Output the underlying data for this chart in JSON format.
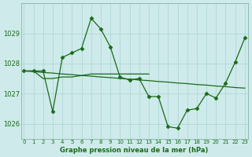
{
  "line1_x": [
    0,
    1,
    2,
    3,
    4,
    5,
    6,
    7,
    8,
    9,
    10,
    11,
    12,
    13,
    14,
    15,
    16,
    17,
    18,
    19,
    20,
    21,
    22,
    23
  ],
  "line1_y": [
    1027.75,
    1027.75,
    1027.75,
    1026.4,
    1028.2,
    1028.35,
    1028.5,
    1029.5,
    1029.15,
    1028.55,
    1027.55,
    1027.45,
    1027.5,
    1026.9,
    1026.9,
    1025.9,
    1025.85,
    1026.45,
    1026.5,
    1027.0,
    1026.85,
    1027.35,
    1028.05,
    1028.85
  ],
  "line2_x": [
    0,
    1,
    2,
    3,
    4,
    5,
    6,
    7,
    8,
    9,
    10,
    11,
    12,
    13,
    14,
    15,
    16,
    17,
    18,
    19,
    20,
    21,
    22,
    23
  ],
  "line2_y": [
    1027.75,
    1027.73,
    1027.7,
    1027.68,
    1027.65,
    1027.63,
    1027.6,
    1027.58,
    1027.55,
    1027.53,
    1027.5,
    1027.48,
    1027.45,
    1027.43,
    1027.4,
    1027.38,
    1027.35,
    1027.33,
    1027.3,
    1027.28,
    1027.25,
    1027.23,
    1027.2,
    1027.18
  ],
  "line3_x": [
    0,
    1,
    2,
    3,
    4,
    5,
    6,
    7,
    8,
    9,
    10,
    11,
    12,
    13
  ],
  "line3_y": [
    1027.75,
    1027.75,
    1027.5,
    1027.5,
    1027.55,
    1027.55,
    1027.6,
    1027.65,
    1027.65,
    1027.65,
    1027.65,
    1027.65,
    1027.65,
    1027.65
  ],
  "bg_color": "#ceeaea",
  "line_color": "#1a6b1a",
  "grid_color": "#b0d8d8",
  "xlabel": "Graphe pression niveau de la mer (hPa)",
  "ylim": [
    1025.5,
    1030.0
  ],
  "xlim": [
    -0.3,
    23.3
  ],
  "yticks": [
    1026,
    1027,
    1028,
    1029
  ],
  "xticks": [
    0,
    1,
    2,
    3,
    4,
    5,
    6,
    7,
    8,
    9,
    10,
    11,
    12,
    13,
    14,
    15,
    16,
    17,
    18,
    19,
    20,
    21,
    22,
    23
  ],
  "font_color": "#1a6b1a"
}
